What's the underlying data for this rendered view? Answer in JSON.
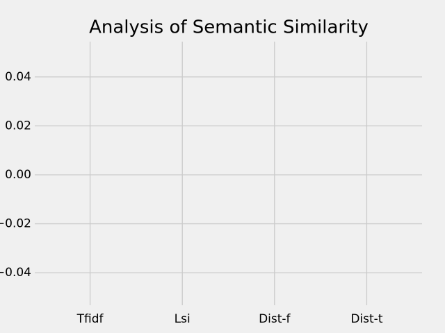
{
  "chart_data": {
    "type": "bar",
    "title": "Analysis of Semantic Similarity",
    "categories": [
      "Tfidf",
      "Lsi",
      "Dist-f",
      "Dist-t"
    ],
    "values": [
      null,
      null,
      null,
      null
    ],
    "ylim": [
      -0.055,
      0.055
    ],
    "yticks": [
      {
        "value": -0.04,
        "label": "−0.04"
      },
      {
        "value": -0.02,
        "label": "−0.02"
      },
      {
        "value": 0,
        "label": "0.00"
      },
      0.02,
      0.04
    ],
    "grid": true
  }
}
